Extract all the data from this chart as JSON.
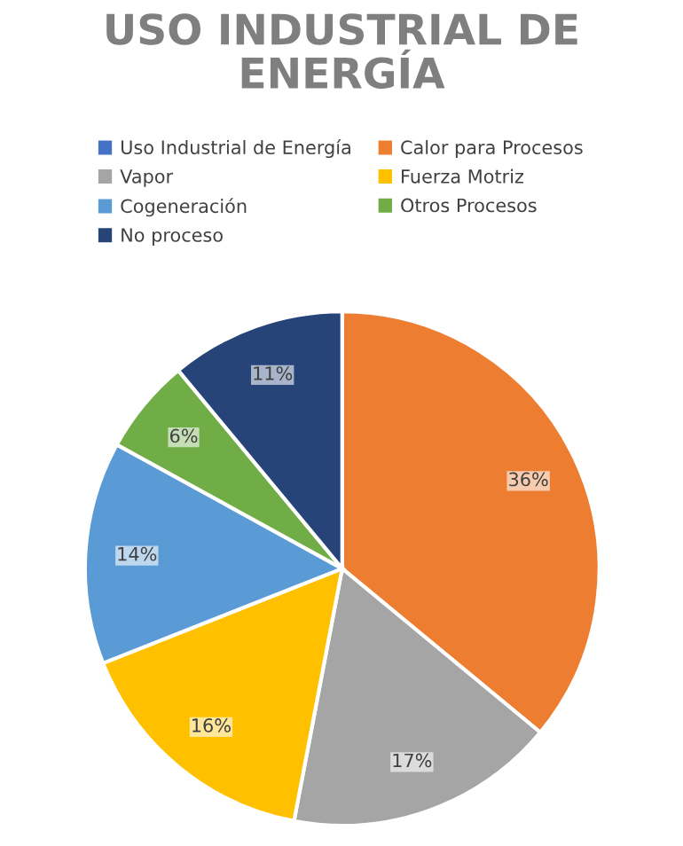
{
  "chart_data": {
    "type": "pie",
    "title": "USO INDUSTRIAL DE ENERGÍA",
    "categories": [
      "Uso Industrial de Energía",
      "Calor para Procesos",
      "Vapor",
      "Fuerza Motriz",
      "Cogeneración",
      "Otros Procesos",
      "No proceso"
    ],
    "values": [
      0,
      36,
      17,
      16,
      14,
      6,
      11
    ],
    "colors": [
      "#4472c4",
      "#ed7d31",
      "#a5a5a5",
      "#ffc000",
      "#5b9bd5",
      "#70ad47",
      "#264478"
    ],
    "value_labels": [
      null,
      "36%",
      "17%",
      "16%",
      "14%",
      "6%",
      "11%"
    ],
    "legend": "top"
  }
}
